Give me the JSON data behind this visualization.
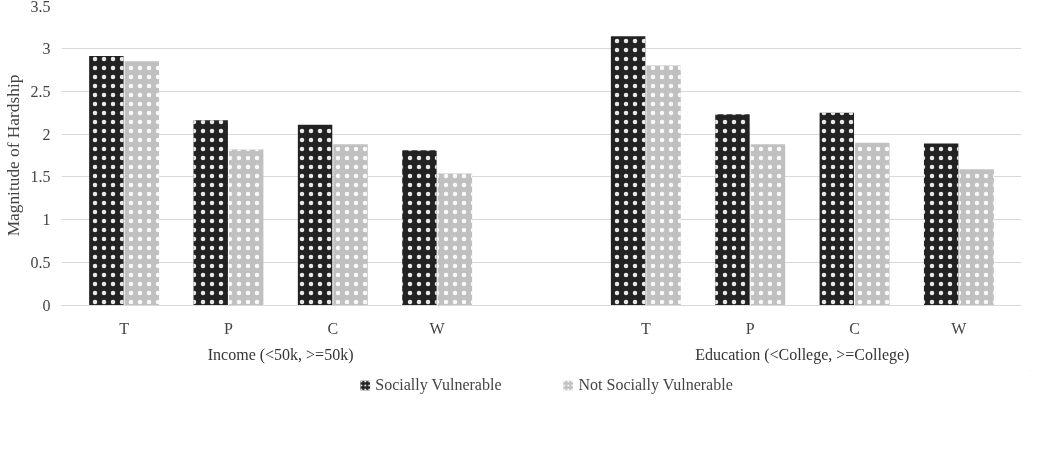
{
  "chart_data": {
    "type": "bar",
    "ylabel": "Magnitude of Hardship",
    "categories": [
      "T",
      "P",
      "C",
      "W",
      null,
      "T",
      "P",
      "C",
      "W"
    ],
    "series": [
      {
        "name": "Socially Vulnerable",
        "color": "#222222",
        "values": [
          2.91,
          2.16,
          2.11,
          1.81,
          null,
          3.14,
          2.23,
          2.25,
          1.89
        ]
      },
      {
        "name": "Not Socially Vulnerable",
        "color": "#c0c0c0",
        "values": [
          2.85,
          1.82,
          1.88,
          1.54,
          null,
          2.8,
          1.88,
          1.9,
          1.59
        ]
      }
    ],
    "annotations": [
      "Income (<50k, >=50k)",
      "Education (<College, >=College)"
    ],
    "ylim": [
      0,
      3.5
    ],
    "yticks": [
      0,
      0.5,
      1,
      1.5,
      2,
      2.5,
      3,
      3.5
    ],
    "grid": "y",
    "legend": "bottom"
  }
}
